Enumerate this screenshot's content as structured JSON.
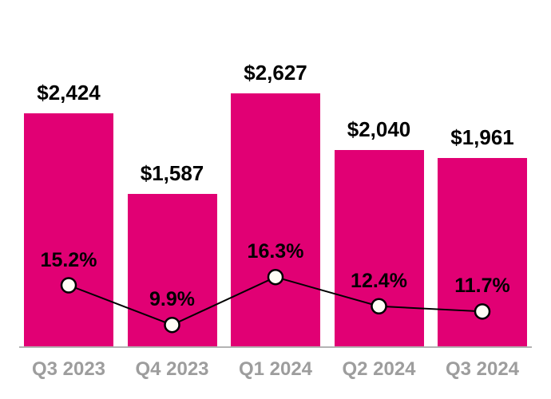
{
  "chart_data": {
    "type": "bar",
    "title": "",
    "xlabel": "",
    "ylabel": "",
    "grid": false,
    "legend": "none",
    "categories": [
      "Q3 2023",
      "Q4 2023",
      "Q1 2024",
      "Q2 2024",
      "Q3 2024"
    ],
    "series": [
      {
        "name": "dollar-values",
        "type": "bar",
        "values": [
          2424,
          1587,
          2627,
          2040,
          1961
        ],
        "labels": [
          "$2,424",
          "$1,587",
          "$2,627",
          "$2,040",
          "$1,961"
        ]
      },
      {
        "name": "percentages",
        "type": "line",
        "values": [
          15.2,
          9.9,
          16.3,
          12.4,
          11.7
        ],
        "labels": [
          "15.2%",
          "9.9%",
          "16.3%",
          "12.4%",
          "11.7%"
        ]
      }
    ],
    "bar_ylim": [
      0,
      2627
    ],
    "colors": {
      "bar": "#e10074",
      "line": "#000000",
      "marker_fill": "#fffdf5",
      "marker_stroke": "#000000",
      "value_label": "#000000",
      "pct_label": "#000000",
      "tick_label": "#9d9d9d",
      "axis": "#b3b3b3"
    }
  }
}
